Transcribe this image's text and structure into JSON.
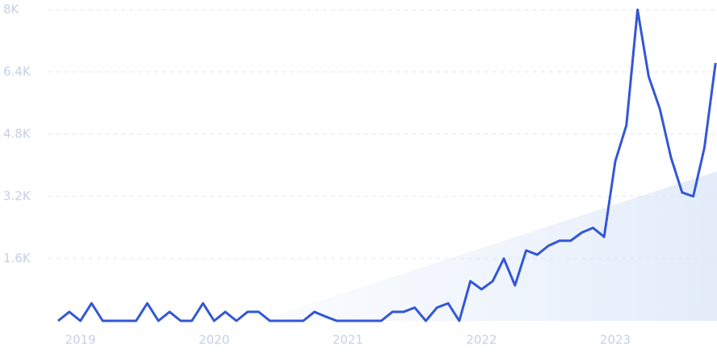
{
  "chart_data": {
    "type": "line",
    "categories": [
      null,
      null,
      "2019",
      null,
      null,
      null,
      null,
      null,
      null,
      null,
      null,
      null,
      null,
      null,
      "2020",
      null,
      null,
      null,
      null,
      null,
      null,
      null,
      null,
      null,
      null,
      null,
      "2021",
      null,
      null,
      null,
      null,
      null,
      null,
      null,
      null,
      null,
      null,
      null,
      "2022",
      null,
      null,
      null,
      null,
      null,
      null,
      null,
      null,
      null,
      null,
      null,
      "2023",
      null,
      null,
      null,
      null,
      null,
      null,
      null,
      null,
      null
    ],
    "series": [
      {
        "color": "#3457d5",
        "values": [
          0,
          230,
          0,
          450,
          0,
          0,
          0,
          0,
          450,
          0,
          230,
          0,
          0,
          450,
          0,
          230,
          0,
          230,
          230,
          0,
          0,
          0,
          0,
          230,
          110,
          0,
          0,
          0,
          0,
          0,
          230,
          230,
          340,
          0,
          340,
          450,
          0,
          1020,
          810,
          1020,
          1600,
          910,
          1810,
          1700,
          1930,
          2060,
          2060,
          2270,
          2390,
          2160,
          4100,
          5030,
          8000,
          6280,
          5450,
          4200,
          3300,
          3200,
          4450,
          6630
        ]
      }
    ],
    "ylim": [
      0,
      8000
    ],
    "yticks": [
      {
        "value": 1600,
        "label": "1.6K"
      },
      {
        "value": 3200,
        "label": "3.2K"
      },
      {
        "value": 4800,
        "label": "4.8K"
      },
      {
        "value": 6400,
        "label": "6.4K"
      },
      {
        "value": 8000,
        "label": "8K"
      }
    ],
    "grid": true
  }
}
